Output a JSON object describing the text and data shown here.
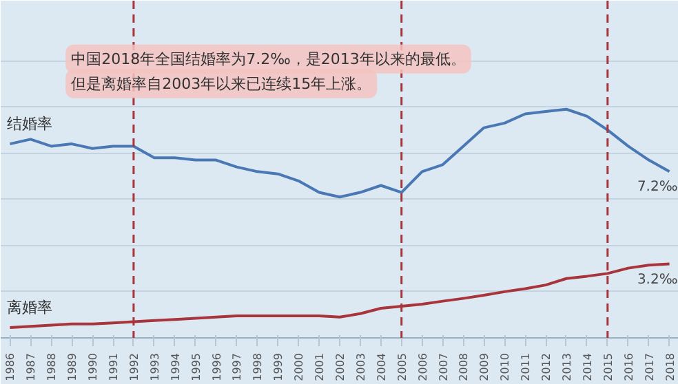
{
  "chart_data": {
    "type": "line",
    "categories": [
      "1986",
      "1987",
      "1988",
      "1989",
      "1990",
      "1991",
      "1992",
      "1993",
      "1994",
      "1995",
      "1996",
      "1997",
      "1998",
      "1999",
      "2000",
      "2001",
      "2002",
      "2003",
      "2004",
      "2005",
      "2006",
      "2007",
      "2008",
      "2009",
      "2010",
      "2011",
      "2012",
      "2013",
      "2014",
      "2015",
      "2016",
      "2017",
      "2018"
    ],
    "series": [
      {
        "name": "结婚率",
        "color": "#4a78b4",
        "values": [
          8.4,
          8.6,
          8.3,
          8.4,
          8.2,
          8.3,
          8.3,
          7.8,
          7.8,
          7.7,
          7.7,
          7.4,
          7.2,
          7.1,
          6.8,
          6.3,
          6.1,
          6.3,
          6.6,
          6.3,
          7.2,
          7.5,
          8.3,
          9.1,
          9.3,
          9.7,
          9.8,
          9.9,
          9.6,
          9.0,
          8.3,
          7.7,
          7.2
        ],
        "value_labels": [
          null,
          null,
          null,
          null,
          null,
          null,
          null,
          null,
          null,
          null,
          null,
          null,
          null,
          null,
          null,
          null,
          null,
          null,
          null,
          null,
          null,
          null,
          null,
          null,
          null,
          null,
          null,
          null,
          null,
          null,
          null,
          null,
          "7.2‰"
        ]
      },
      {
        "name": "离婚率",
        "color": "#a8343c",
        "values": [
          0.45,
          0.5,
          0.55,
          0.6,
          0.6,
          0.65,
          0.7,
          0.75,
          0.8,
          0.85,
          0.9,
          0.95,
          0.95,
          0.95,
          0.95,
          0.95,
          0.9,
          1.05,
          1.28,
          1.37,
          1.46,
          1.59,
          1.71,
          1.85,
          2.0,
          2.13,
          2.29,
          2.57,
          2.67,
          2.79,
          3.02,
          3.15,
          3.2
        ],
        "value_labels": [
          null,
          null,
          null,
          null,
          null,
          null,
          null,
          null,
          null,
          null,
          null,
          null,
          null,
          null,
          null,
          null,
          null,
          null,
          null,
          null,
          null,
          null,
          null,
          null,
          null,
          null,
          null,
          null,
          null,
          null,
          null,
          null,
          "3.2‰"
        ]
      }
    ],
    "ylim": [
      0,
      14.6
    ],
    "yticks": [
      {
        "value": 0,
        "label": null
      },
      {
        "value": 2,
        "label": null
      },
      {
        "value": 4,
        "label": null
      },
      {
        "value": 6,
        "label": null
      },
      {
        "value": 8,
        "label": null
      },
      {
        "value": 10,
        "label": null
      },
      {
        "value": 12,
        "label": null
      }
    ],
    "tick_labels": "x",
    "grid": "y",
    "marker": "none",
    "line_style": "solid",
    "ref_lines": [
      {
        "axis": "x",
        "value": "1992",
        "color": "#a8343c",
        "line_style": "dashed"
      },
      {
        "axis": "x",
        "value": "2005",
        "color": "#a8343c",
        "line_style": "dashed"
      },
      {
        "axis": "x",
        "value": "2015",
        "color": "#a8343c",
        "line_style": "dashed"
      }
    ],
    "annotations": [
      "中国2018年全国结婚率为7.2‰，是2013年以来的最低。",
      "但是离婚率自2003年以来已连续15年上涨。"
    ]
  }
}
